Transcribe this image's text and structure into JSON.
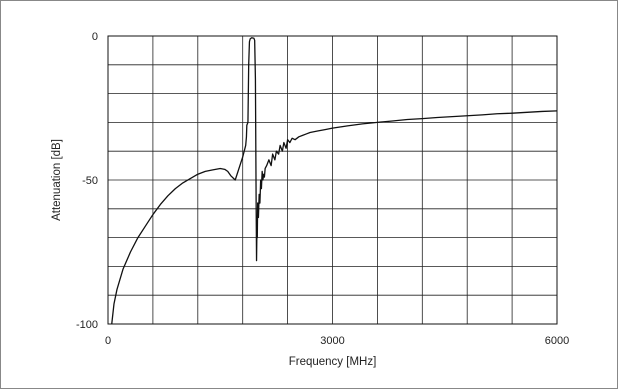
{
  "chart_data": {
    "type": "line",
    "xlabel": "Frequency [MHz]",
    "ylabel": "Attenuation [dB]",
    "xlim": [
      0,
      6000
    ],
    "ylim": [
      -100,
      0
    ],
    "x_ticks": [
      0,
      3000,
      6000
    ],
    "x_tick_labels": [
      "0",
      "3000",
      "6000"
    ],
    "y_ticks": [
      0,
      -50,
      -100
    ],
    "y_tick_labels": [
      "0",
      "-50",
      "-100"
    ],
    "x_grid_step": 600,
    "y_grid_step": 10,
    "grid": true,
    "legend": "none",
    "series": [
      {
        "color": "#111111",
        "x": [
          50,
          80,
          120,
          200,
          300,
          400,
          500,
          600,
          700,
          800,
          900,
          1000,
          1100,
          1200,
          1300,
          1400,
          1500,
          1560,
          1600,
          1640,
          1700,
          1800,
          1840,
          1850,
          1855,
          1870,
          1880,
          1890,
          1900,
          1920,
          1950,
          1960,
          1970,
          1980,
          1985,
          1990,
          1995,
          2000,
          2010,
          2020,
          2030,
          2040,
          2050,
          2060,
          2070,
          2080,
          2090,
          2100,
          2120,
          2150,
          2180,
          2200,
          2230,
          2250,
          2280,
          2300,
          2330,
          2350,
          2380,
          2400,
          2430,
          2460,
          2500,
          2550,
          2600,
          2650,
          2700,
          2800,
          2900,
          3000,
          3200,
          3400,
          3600,
          3800,
          4000,
          4200,
          4400,
          4600,
          4800,
          5000,
          5200,
          5400,
          5600,
          5800,
          6000
        ],
        "y": [
          -100,
          -93,
          -88,
          -81,
          -75,
          -70,
          -66,
          -62,
          -58.5,
          -55.5,
          -53,
          -51,
          -49.5,
          -48,
          -47,
          -46.5,
          -46,
          -46.3,
          -47,
          -48.5,
          -50,
          -42,
          -38,
          -35,
          -31,
          -30,
          -10,
          -2,
          -1,
          -0.6,
          -0.8,
          -1.5,
          -15,
          -60,
          -78,
          -68,
          -70,
          -58,
          -63,
          -55,
          -58,
          -50,
          -53,
          -47,
          -50,
          -48,
          -49,
          -46,
          -45,
          -43,
          -45,
          -41,
          -43,
          -40,
          -41,
          -38,
          -40,
          -37,
          -39,
          -36,
          -37,
          -35.5,
          -36,
          -35,
          -34.5,
          -34,
          -33.5,
          -33,
          -32.5,
          -32,
          -31.2,
          -30.5,
          -30,
          -29.5,
          -29,
          -28.7,
          -28.3,
          -28,
          -27.7,
          -27.4,
          -27,
          -26.8,
          -26.5,
          -26.2,
          -26
        ]
      }
    ]
  }
}
